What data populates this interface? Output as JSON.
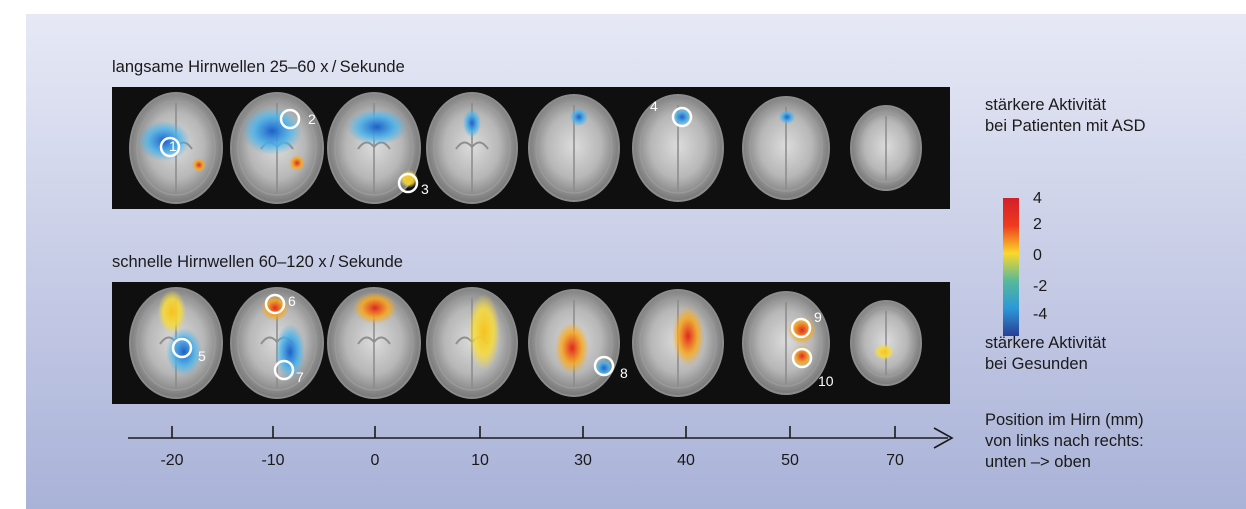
{
  "rows": [
    {
      "label": "langsame Hirnwellen 25–60 x / Sekunde"
    },
    {
      "label": "schnelle Hirnwellen 60–120 x / Sekunde"
    }
  ],
  "markers_slow": [
    "1",
    "2",
    "3",
    "4"
  ],
  "markers_fast": [
    "5",
    "6",
    "7",
    "8",
    "9",
    "10"
  ],
  "legend": {
    "top_line1": "stärkere Aktivität",
    "top_line2": "bei Patienten mit ASD",
    "bottom_line1": "stärkere Aktivität",
    "bottom_line2": "bei Gesunden",
    "ticks": [
      "4",
      "2",
      "0",
      "-2",
      "-4"
    ],
    "colors": [
      "#d21f2a",
      "#ef3a1e",
      "#fbd82a",
      "#58b99a",
      "#2c98d8",
      "#2a3d95"
    ]
  },
  "axis": {
    "ticks": [
      "-20",
      "-10",
      "0",
      "10",
      "30",
      "40",
      "50",
      "70"
    ],
    "caption_line1": "Position im Hirn (mm)",
    "caption_line2": "von links nach rechts:",
    "caption_line3": "unten –> oben"
  }
}
